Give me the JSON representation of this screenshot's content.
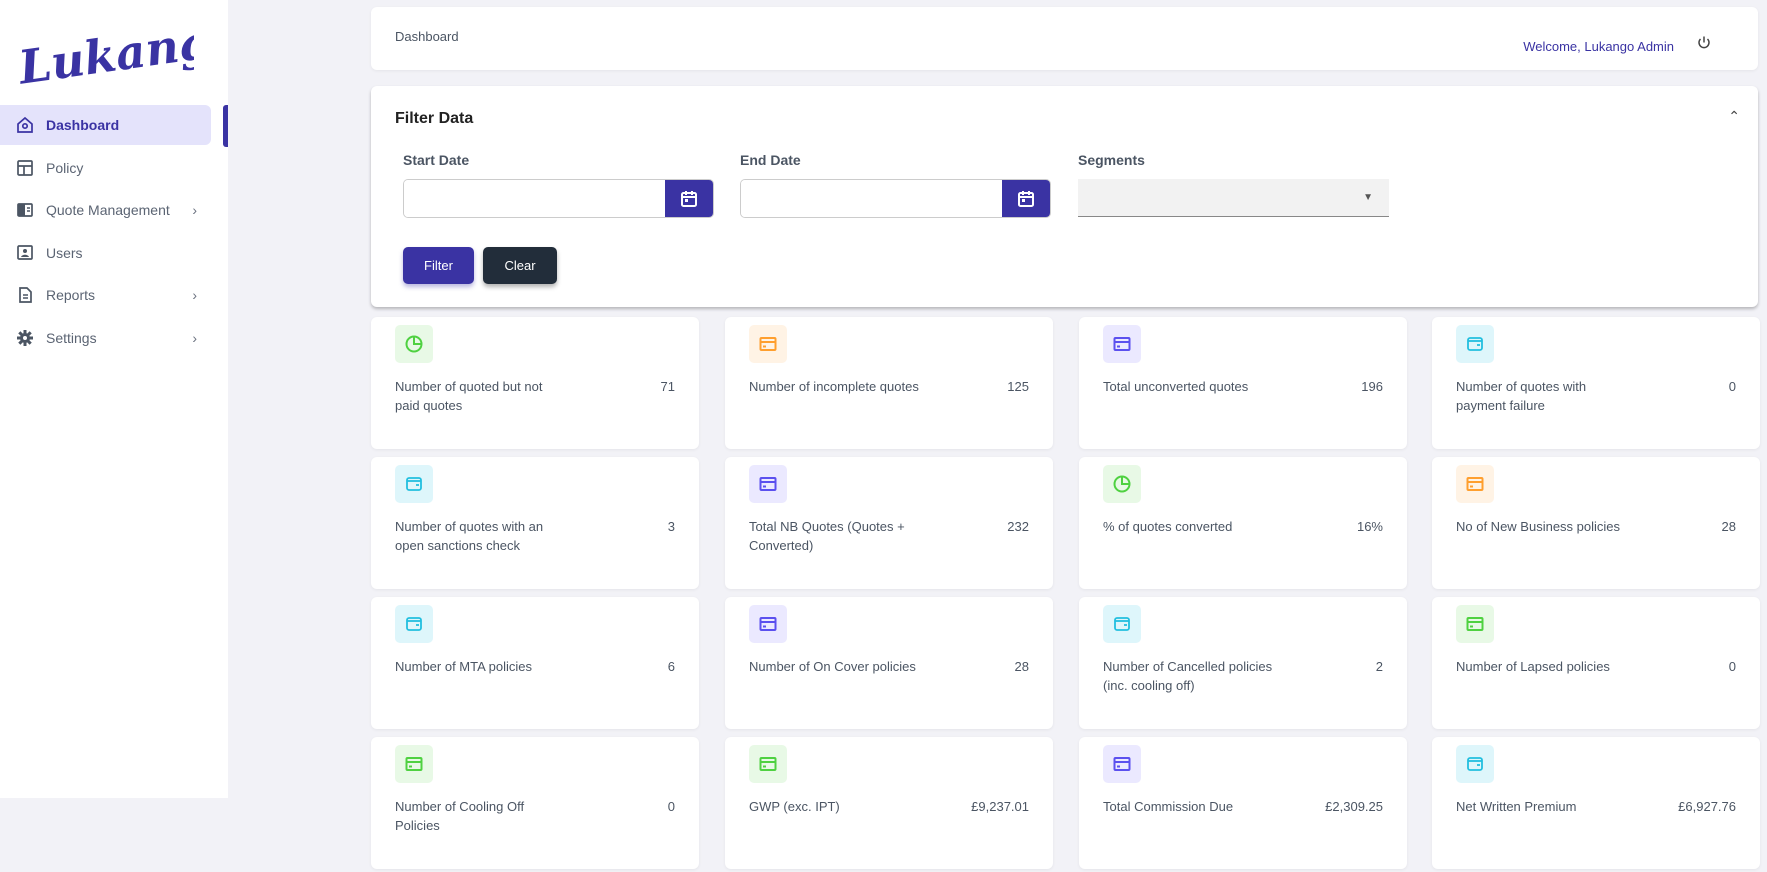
{
  "brand": {
    "logo_text": "Lukango",
    "accent": "#3a33a3"
  },
  "sidebar": {
    "items": [
      {
        "label": "Dashboard",
        "icon": "home-icon",
        "active": true,
        "chevron": false
      },
      {
        "label": "Policy",
        "icon": "layout-icon",
        "chevron": false
      },
      {
        "label": "Quote Management",
        "icon": "book-icon",
        "chevron": true
      },
      {
        "label": "Users",
        "icon": "user-badge-icon",
        "chevron": false
      },
      {
        "label": "Reports",
        "icon": "document-icon",
        "chevron": true
      },
      {
        "label": "Settings",
        "icon": "gear-icon",
        "chevron": true
      }
    ]
  },
  "header": {
    "breadcrumb": "Dashboard",
    "welcome": "Welcome, Lukango Admin",
    "logout_icon": "power-icon"
  },
  "filter": {
    "title": "Filter Data",
    "start_label": "Start Date",
    "start_value": "",
    "end_label": "End Date",
    "end_value": "",
    "segments_label": "Segments",
    "segments_value": "",
    "filter_button": "Filter",
    "clear_button": "Clear"
  },
  "stats": [
    {
      "label": "Number of quoted but not paid quotes",
      "value": "71",
      "icon": "pie-chart-icon",
      "color": "green"
    },
    {
      "label": "Number of incomplete quotes",
      "value": "125",
      "icon": "credit-card-icon",
      "color": "orange"
    },
    {
      "label": "Total unconverted quotes",
      "value": "196",
      "icon": "credit-card-icon",
      "color": "purple"
    },
    {
      "label": "Number of quotes with payment failure",
      "value": "0",
      "icon": "wallet-icon",
      "color": "cyan"
    },
    {
      "label": "Number of quotes with an open sanctions check",
      "value": "3",
      "icon": "wallet-icon",
      "color": "cyan"
    },
    {
      "label": "Total NB Quotes (Quotes + Converted)",
      "value": "232",
      "icon": "credit-card-icon",
      "color": "purple"
    },
    {
      "label": "% of quotes converted",
      "value": "16%",
      "icon": "pie-chart-icon",
      "color": "green"
    },
    {
      "label": "No of New Business policies",
      "value": "28",
      "icon": "credit-card-icon",
      "color": "orange"
    },
    {
      "label": "Number of MTA policies",
      "value": "6",
      "icon": "wallet-icon",
      "color": "cyan"
    },
    {
      "label": "Number of On Cover policies",
      "value": "28",
      "icon": "credit-card-icon",
      "color": "purple"
    },
    {
      "label": "Number of Cancelled policies (inc. cooling off)",
      "value": "2",
      "icon": "wallet-icon",
      "color": "cyan"
    },
    {
      "label": "Number of Lapsed policies",
      "value": "0",
      "icon": "credit-card-icon",
      "color": "green"
    },
    {
      "label": "Number of Cooling Off Policies",
      "value": "0",
      "icon": "credit-card-icon",
      "color": "green"
    },
    {
      "label": "GWP (exc. IPT)",
      "value": "£9,237.01",
      "icon": "credit-card-icon",
      "color": "green"
    },
    {
      "label": "Total Commission Due",
      "value": "£2,309.25",
      "icon": "credit-card-icon",
      "color": "purple"
    },
    {
      "label": "Net Written Premium",
      "value": "£6,927.76",
      "icon": "wallet-icon",
      "color": "cyan"
    }
  ],
  "colors": {
    "green": {
      "bg": "#e8f9e6",
      "fg": "#4fd141"
    },
    "orange": {
      "bg": "#fff3e5",
      "fg": "#ff9f2e"
    },
    "purple": {
      "bg": "#ebe9ff",
      "fg": "#5b50ef"
    },
    "cyan": {
      "bg": "#def6fb",
      "fg": "#22bfdf"
    }
  }
}
